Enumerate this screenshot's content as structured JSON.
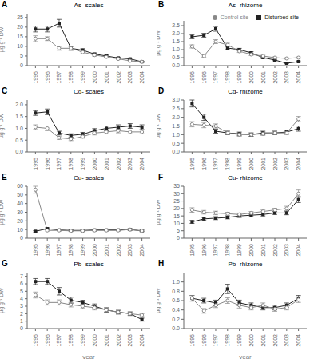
{
  "chart_data": [
    {
      "type": "line",
      "annotations": [
        "A"
      ],
      "title": "As- scales",
      "ylabel": "µg g⁻¹ DW",
      "x": [
        1995,
        1996,
        1997,
        1998,
        1999,
        2000,
        2001,
        2002,
        2003,
        2004
      ],
      "xlim": [
        1994.3,
        2004.7
      ],
      "xticks": [
        1995,
        1996,
        1997,
        1998,
        1999,
        2000,
        2001,
        2002,
        2003,
        2004
      ],
      "ylim": [
        0,
        27
      ],
      "yticks": [
        0,
        5,
        10,
        15,
        20,
        25
      ],
      "grid": false,
      "series": [
        {
          "name": "Disturbed site",
          "color": "#222222",
          "marker": "square",
          "values": [
            19.0,
            19.0,
            22.0,
            9.0,
            8.0,
            6.0,
            5.0,
            4.0,
            3.5,
            2.0
          ],
          "errors": [
            1.5,
            1.5,
            2.0,
            1.0,
            0.8,
            0.6,
            0.5,
            0.4,
            0.4,
            0.3
          ]
        },
        {
          "name": "Control site",
          "color": "#888888",
          "marker": "circle",
          "values": [
            14.0,
            14.0,
            9.0,
            9.0,
            7.0,
            5.5,
            4.5,
            3.5,
            2.5,
            2.0
          ],
          "errors": [
            1.5,
            1.0,
            1.0,
            1.0,
            0.8,
            0.6,
            0.5,
            0.4,
            0.4,
            0.3
          ]
        }
      ]
    },
    {
      "type": "line",
      "annotations": [
        "B"
      ],
      "title": "As- rhizome",
      "ylabel": "µg g⁻¹ DW",
      "x": [
        1995,
        1996,
        1997,
        1998,
        1999,
        2000,
        2001,
        2002,
        2003,
        2004
      ],
      "xlim": [
        1994.3,
        2004.7
      ],
      "xticks": [
        1995,
        1996,
        1997,
        1998,
        1999,
        2000,
        2001,
        2002,
        2003,
        2004
      ],
      "ylim": [
        0,
        2.8
      ],
      "yticks": [
        {
          "value": 0,
          "label": "0.0"
        },
        0.5,
        {
          "value": 1.0,
          "label": "1.0"
        },
        1.5,
        {
          "value": 2.0,
          "label": "2.0"
        },
        2.5
      ],
      "grid": false,
      "legend": "upper right",
      "series": [
        {
          "name": "Disturbed site",
          "color": "#222222",
          "marker": "square",
          "values": [
            1.8,
            1.9,
            2.3,
            1.1,
            1.0,
            0.8,
            0.5,
            0.35,
            0.15,
            0.25
          ],
          "errors": [
            0.12,
            0.12,
            0.15,
            0.1,
            0.08,
            0.07,
            0.05,
            0.04,
            0.03,
            0.04
          ]
        },
        {
          "name": "Control site",
          "color": "#888888",
          "marker": "circle",
          "values": [
            1.2,
            0.6,
            1.5,
            1.3,
            0.9,
            0.7,
            0.6,
            0.5,
            0.45,
            0.5
          ],
          "errors": [
            0.1,
            0.08,
            0.12,
            0.1,
            0.08,
            0.07,
            0.05,
            0.05,
            0.04,
            0.04
          ]
        }
      ]
    },
    {
      "type": "line",
      "annotations": [
        "C"
      ],
      "title": "Cd- scales",
      "ylabel": "µg g⁻¹ DW",
      "x": [
        1995,
        1996,
        1997,
        1998,
        1999,
        2000,
        2001,
        2002,
        2003,
        2004
      ],
      "xlim": [
        1994.3,
        2004.7
      ],
      "xticks": [
        1995,
        1996,
        1997,
        1998,
        1999,
        2000,
        2001,
        2002,
        2003,
        2004
      ],
      "ylim": [
        0.0,
        2.2
      ],
      "yticks": [
        {
          "value": 0.0,
          "label": "0.0"
        },
        0.5,
        {
          "value": 1.0,
          "label": "1.0"
        },
        1.5,
        {
          "value": 2.0,
          "label": "2.0"
        }
      ],
      "grid": false,
      "series": [
        {
          "name": "Disturbed site",
          "color": "#222222",
          "marker": "square",
          "values": [
            1.65,
            1.7,
            0.8,
            0.7,
            0.75,
            0.9,
            1.0,
            1.05,
            1.1,
            1.05
          ],
          "errors": [
            0.1,
            0.12,
            0.08,
            0.07,
            0.08,
            0.09,
            0.1,
            0.1,
            0.1,
            0.1
          ]
        },
        {
          "name": "Control site",
          "color": "#888888",
          "marker": "circle",
          "values": [
            1.05,
            1.0,
            0.6,
            0.55,
            0.65,
            0.8,
            0.85,
            0.9,
            0.85,
            0.85
          ],
          "errors": [
            0.1,
            0.1,
            0.07,
            0.07,
            0.07,
            0.08,
            0.08,
            0.09,
            0.08,
            0.08
          ]
        }
      ]
    },
    {
      "type": "line",
      "annotations": [
        "D"
      ],
      "title": "Cd- rhizome",
      "ylabel": "µg g⁻¹ DW",
      "x": [
        1995,
        1996,
        1997,
        1998,
        1999,
        2000,
        2001,
        2002,
        2003,
        2004
      ],
      "xlim": [
        1994.3,
        2004.7
      ],
      "xticks": [
        1995,
        1996,
        1997,
        1998,
        1999,
        2000,
        2001,
        2002,
        2003,
        2004
      ],
      "ylim": [
        0,
        3.0
      ],
      "yticks": [
        {
          "value": 0,
          "label": "0.0"
        },
        0.5,
        {
          "value": 1.0,
          "label": "1.0"
        },
        1.5,
        {
          "value": 2.0,
          "label": "2.0"
        },
        2.5,
        {
          "value": 3.0,
          "label": "3.0"
        }
      ],
      "grid": false,
      "series": [
        {
          "name": "Disturbed site",
          "color": "#222222",
          "marker": "square",
          "values": [
            2.8,
            2.0,
            1.2,
            1.1,
            1.05,
            1.0,
            1.1,
            1.1,
            1.15,
            1.35
          ],
          "errors": [
            0.2,
            0.18,
            0.12,
            0.1,
            0.1,
            0.1,
            0.1,
            0.1,
            0.1,
            0.15
          ]
        },
        {
          "name": "Control site",
          "color": "#888888",
          "marker": "circle",
          "values": [
            1.6,
            1.55,
            1.5,
            1.1,
            1.0,
            1.0,
            1.05,
            1.1,
            1.1,
            1.9
          ],
          "errors": [
            0.15,
            0.15,
            0.12,
            0.1,
            0.1,
            0.1,
            0.1,
            0.1,
            0.1,
            0.15
          ]
        }
      ]
    },
    {
      "type": "line",
      "annotations": [
        "E"
      ],
      "title": "Cu- scales",
      "ylabel": "µg g⁻¹ DW",
      "x": [
        1995,
        1996,
        1997,
        1998,
        1999,
        2000,
        2001,
        2002,
        2003,
        2004
      ],
      "xlim": [
        1994.3,
        2004.7
      ],
      "xticks": [
        1995,
        1996,
        1997,
        1998,
        1999,
        2000,
        2001,
        2002,
        2003,
        2004
      ],
      "ylim": [
        0.0,
        60.0
      ],
      "yticks": [
        0,
        10,
        20,
        30,
        40,
        50,
        60
      ],
      "grid": false,
      "series": [
        {
          "name": "Disturbed site",
          "color": "#222222",
          "marker": "square",
          "values": [
            8.0,
            11.0,
            9.5,
            9.0,
            9.0,
            9.5,
            9.5,
            9.5,
            10.0,
            8.5
          ],
          "errors": [
            0.8,
            1.0,
            0.8,
            0.8,
            0.8,
            0.8,
            0.8,
            0.8,
            1.0,
            0.8
          ]
        },
        {
          "name": "Control site",
          "color": "#888888",
          "marker": "circle",
          "values": [
            56.0,
            9.0,
            9.0,
            8.5,
            8.5,
            9.0,
            9.0,
            9.0,
            10.0,
            8.5
          ],
          "errors": [
            4.0,
            0.8,
            0.8,
            0.8,
            0.8,
            0.8,
            0.8,
            0.8,
            1.0,
            0.8
          ]
        }
      ]
    },
    {
      "type": "line",
      "annotations": [
        "F"
      ],
      "title": "Cu- rhizome",
      "ylabel": "µg g⁻¹ DW",
      "x": [
        1995,
        1996,
        1997,
        1998,
        1999,
        2000,
        2001,
        2002,
        2003,
        2004
      ],
      "xlim": [
        1994.3,
        2004.7
      ],
      "xticks": [
        1995,
        1996,
        1997,
        1998,
        1999,
        2000,
        2001,
        2002,
        2003,
        2004
      ],
      "ylim": [
        0,
        35
      ],
      "yticks": [
        0,
        5,
        10,
        15,
        20,
        25,
        30,
        35
      ],
      "grid": false,
      "series": [
        {
          "name": "Disturbed site",
          "color": "#222222",
          "marker": "square",
          "values": [
            11.0,
            13.0,
            13.5,
            14.0,
            15.0,
            15.5,
            16.0,
            17.0,
            17.0,
            26.0
          ],
          "errors": [
            1.0,
            1.0,
            1.0,
            1.0,
            1.0,
            1.0,
            1.0,
            1.0,
            1.2,
            2.0
          ]
        },
        {
          "name": "Control site",
          "color": "#888888",
          "marker": "circle",
          "values": [
            19.0,
            17.5,
            17.0,
            16.5,
            16.0,
            17.0,
            18.0,
            19.0,
            20.0,
            30.0
          ],
          "errors": [
            1.5,
            1.2,
            1.2,
            1.0,
            1.0,
            1.0,
            1.0,
            1.2,
            1.5,
            2.5
          ]
        }
      ]
    },
    {
      "type": "line",
      "annotations": [
        "G"
      ],
      "title": "Pb- scales",
      "ylabel": "µg g⁻¹ DW",
      "xlabel": "year",
      "x": [
        1995,
        1996,
        1997,
        1998,
        1999,
        2000,
        2001,
        2002,
        2003,
        2004
      ],
      "xlim": [
        1994.3,
        2004.7
      ],
      "xticks": [
        1995,
        1996,
        1997,
        1998,
        1999,
        2000,
        2001,
        2002,
        2003,
        2004
      ],
      "ylim": [
        0,
        7.5
      ],
      "yticks": [
        0,
        1,
        2,
        3,
        4,
        5,
        6,
        7
      ],
      "grid": false,
      "series": [
        {
          "name": "Disturbed site",
          "color": "#222222",
          "marker": "square",
          "values": [
            6.3,
            6.3,
            5.0,
            3.8,
            3.5,
            3.0,
            2.5,
            2.2,
            2.0,
            1.2
          ],
          "errors": [
            0.4,
            0.4,
            0.5,
            0.4,
            0.3,
            0.3,
            0.3,
            0.25,
            0.25,
            0.2
          ]
        },
        {
          "name": "Control site",
          "color": "#888888",
          "marker": "circle",
          "values": [
            4.5,
            3.5,
            3.5,
            3.2,
            3.0,
            2.8,
            2.5,
            2.2,
            2.0,
            1.8
          ],
          "errors": [
            0.4,
            0.35,
            0.35,
            0.3,
            0.3,
            0.3,
            0.25,
            0.25,
            0.2,
            0.2
          ]
        }
      ]
    },
    {
      "type": "line",
      "annotations": [
        "H"
      ],
      "title": "Pb- rhizome",
      "ylabel": "µg g⁻¹ DW",
      "xlabel": "year",
      "x": [
        1995,
        1996,
        1997,
        1998,
        1999,
        2000,
        2001,
        2002,
        2003,
        2004
      ],
      "xlim": [
        1994.3,
        2004.7
      ],
      "xticks": [
        1995,
        1996,
        1997,
        1998,
        1999,
        2000,
        2001,
        2002,
        2003,
        2004
      ],
      "ylim": [
        0,
        1.2
      ],
      "yticks": [
        {
          "value": 0,
          "label": "0.0"
        },
        0.2,
        0.4,
        0.6,
        0.8,
        {
          "value": 1.0,
          "label": "1.0"
        }
      ],
      "grid": false,
      "series": [
        {
          "name": "Disturbed site",
          "color": "#222222",
          "marker": "square",
          "values": [
            0.65,
            0.6,
            0.55,
            0.85,
            0.55,
            0.5,
            0.45,
            0.45,
            0.5,
            0.65
          ],
          "errors": [
            0.06,
            0.05,
            0.06,
            0.1,
            0.06,
            0.05,
            0.05,
            0.05,
            0.05,
            0.06
          ]
        },
        {
          "name": "Control site",
          "color": "#888888",
          "marker": "circle",
          "values": [
            0.65,
            0.38,
            0.5,
            0.6,
            0.5,
            0.45,
            0.5,
            0.42,
            0.45,
            0.62
          ],
          "errors": [
            0.06,
            0.05,
            0.05,
            0.06,
            0.06,
            0.05,
            0.05,
            0.05,
            0.05,
            0.06
          ]
        }
      ]
    }
  ]
}
